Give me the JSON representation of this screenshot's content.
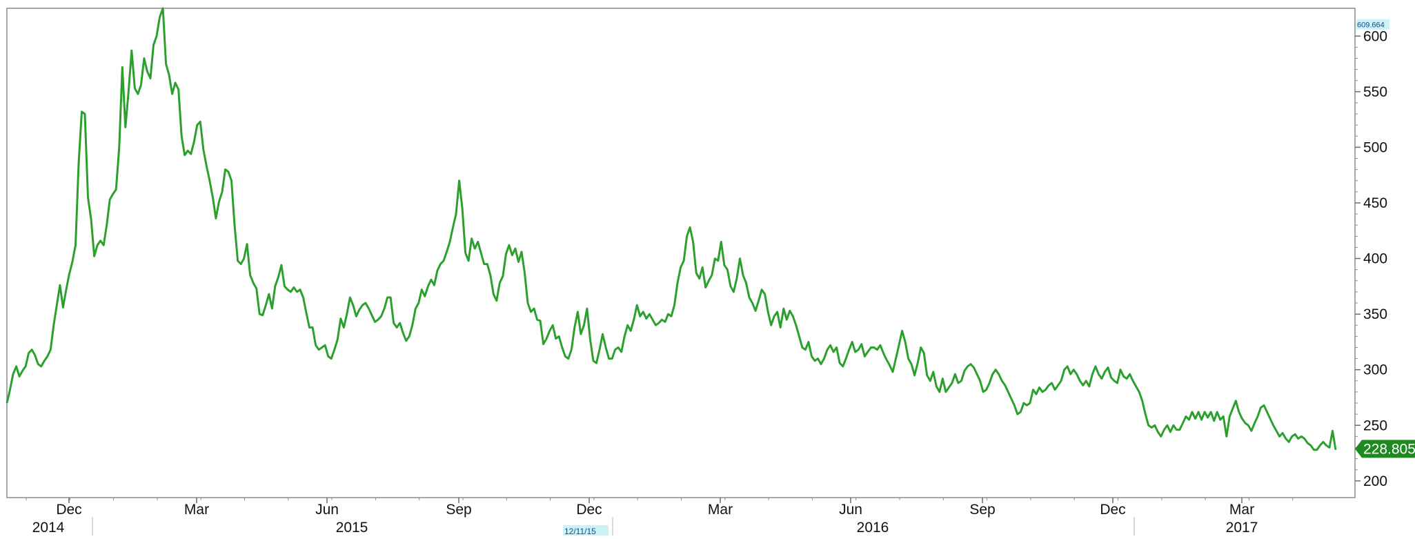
{
  "chart_data": {
    "type": "line",
    "title": "",
    "xlabel": "",
    "ylabel": "",
    "ylim": [
      185,
      625
    ],
    "y_ticks": [
      200,
      250,
      300,
      350,
      400,
      450,
      500,
      550,
      600
    ],
    "x_month_labels": [
      "Dec",
      "Mar",
      "Jun",
      "Sep",
      "Dec",
      "Mar",
      "Jun",
      "Sep",
      "Dec",
      "Mar"
    ],
    "x_year_labels": [
      "2014",
      "2015",
      "2016",
      "2017"
    ],
    "max_marker": {
      "label": "609.664",
      "value": 609.664
    },
    "last_value_label": {
      "label": "228.805",
      "value": 228.805
    },
    "date_marker": {
      "label": "12/11/15"
    },
    "grid": false,
    "line_color": "#2ca02c",
    "series": [
      {
        "values": [
          270,
          282,
          296,
          303,
          294,
          299,
          303,
          315,
          318,
          313,
          305,
          303,
          308,
          312,
          318,
          340,
          358,
          376,
          356,
          372,
          386,
          397,
          412,
          485,
          532,
          530,
          455,
          435,
          402,
          412,
          416,
          412,
          430,
          453,
          458,
          462,
          500,
          572,
          518,
          550,
          587,
          553,
          548,
          556,
          580,
          568,
          562,
          592,
          600,
          617,
          625,
          575,
          565,
          548,
          558,
          552,
          510,
          493,
          497,
          494,
          505,
          520,
          523,
          498,
          483,
          470,
          455,
          436,
          451,
          460,
          480,
          478,
          470,
          430,
          398,
          395,
          400,
          413,
          385,
          378,
          373,
          350,
          349,
          358,
          368,
          355,
          375,
          383,
          394,
          375,
          372,
          370,
          374,
          370,
          372,
          365,
          351,
          338,
          338,
          322,
          318,
          320,
          322,
          312,
          310,
          318,
          327,
          346,
          338,
          350,
          365,
          358,
          348,
          354,
          358,
          360,
          355,
          349,
          343,
          345,
          348,
          355,
          365,
          365,
          342,
          338,
          342,
          333,
          326,
          330,
          340,
          355,
          360,
          372,
          366,
          375,
          381,
          376,
          389,
          395,
          398,
          406,
          415,
          428,
          440,
          470,
          445,
          405,
          398,
          418,
          409,
          415,
          405,
          395,
          395,
          385,
          368,
          362,
          378,
          384,
          404,
          412,
          403,
          409,
          397,
          406,
          387,
          360,
          352,
          355,
          345,
          344,
          323,
          328,
          335,
          340,
          328,
          330,
          320,
          312,
          310,
          318,
          338,
          352,
          332,
          340,
          355,
          327,
          308,
          306,
          318,
          332,
          320,
          310,
          310,
          318,
          320,
          316,
          330,
          340,
          335,
          345,
          358,
          348,
          352,
          346,
          350,
          345,
          340,
          342,
          345,
          343,
          350,
          348,
          358,
          378,
          392,
          398,
          420,
          428,
          415,
          387,
          382,
          392,
          374,
          380,
          385,
          400,
          398,
          415,
          394,
          390,
          375,
          370,
          382,
          400,
          385,
          378,
          365,
          360,
          353,
          362,
          372,
          368,
          352,
          340,
          348,
          352,
          338,
          355,
          345,
          353,
          348,
          340,
          330,
          320,
          318,
          325,
          312,
          308,
          310,
          305,
          310,
          318,
          322,
          316,
          320,
          306,
          303,
          310,
          318,
          325,
          316,
          318,
          323,
          312,
          316,
          320,
          320,
          318,
          322,
          315,
          309,
          304,
          298,
          310,
          322,
          335,
          325,
          310,
          305,
          295,
          306,
          320,
          315,
          295,
          290,
          298,
          285,
          280,
          292,
          280,
          284,
          288,
          296,
          288,
          290,
          299,
          303,
          305,
          302,
          296,
          290,
          280,
          282,
          288,
          296,
          300,
          296,
          290,
          286,
          280,
          274,
          268,
          260,
          262,
          270,
          268,
          270,
          282,
          278,
          284,
          280,
          282,
          286,
          288,
          282,
          286,
          290,
          300,
          303,
          296,
          300,
          296,
          290,
          286,
          290,
          285,
          296,
          303,
          296,
          292,
          298,
          302,
          293,
          290,
          288,
          300,
          294,
          292,
          296,
          290,
          285,
          280,
          272,
          260,
          250,
          248,
          250,
          244,
          240,
          246,
          250,
          244,
          250,
          246,
          246,
          252,
          258,
          255,
          262,
          256,
          262,
          255,
          262,
          257,
          262,
          254,
          262,
          255,
          258,
          240,
          258,
          265,
          272,
          262,
          256,
          252,
          250,
          245,
          252,
          258,
          266,
          268,
          262,
          256,
          250,
          245,
          240,
          243,
          238,
          235,
          240,
          242,
          238,
          240,
          238,
          234,
          232,
          228,
          228,
          232,
          235,
          232,
          230,
          245,
          228
        ]
      }
    ]
  }
}
